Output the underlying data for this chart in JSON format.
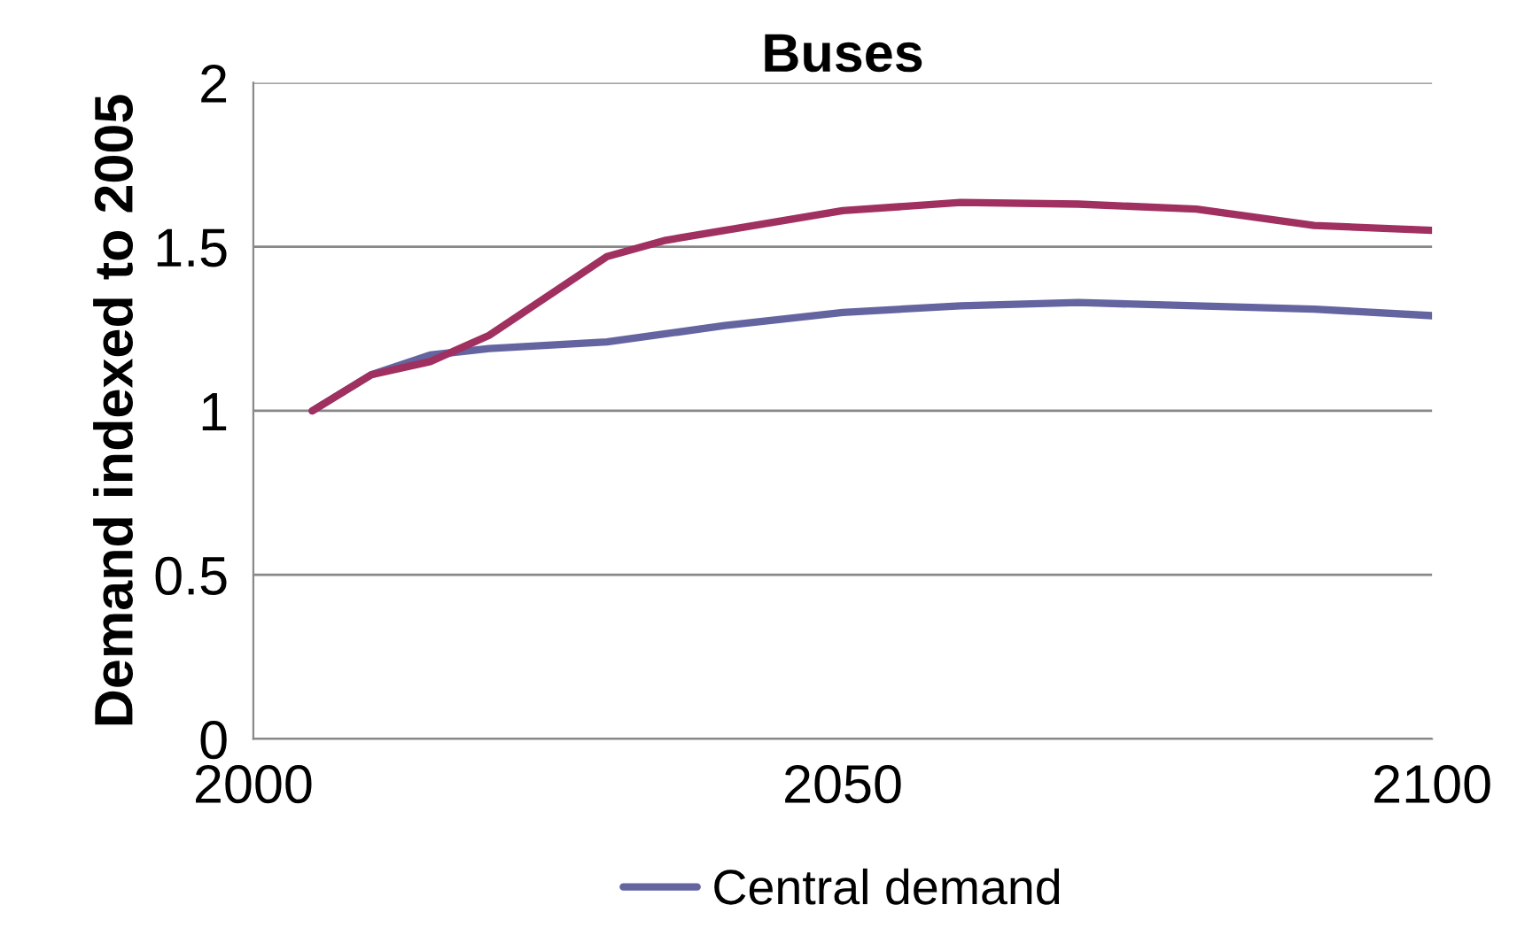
{
  "chart_data": {
    "type": "line",
    "title": "Buses",
    "ylabel": "Demand indexed to 2005",
    "x": [
      2005,
      2010,
      2015,
      2020,
      2025,
      2030,
      2035,
      2040,
      2050,
      2060,
      2070,
      2080,
      2090,
      2100
    ],
    "series": [
      {
        "name": "Central demand",
        "color": "#6464a0",
        "values": [
          1.0,
          1.11,
          1.17,
          1.19,
          1.2,
          1.21,
          1.235,
          1.26,
          1.3,
          1.32,
          1.33,
          1.32,
          1.31,
          1.29
        ]
      },
      {
        "color": "#a03060",
        "values": [
          1.0,
          1.11,
          1.15,
          1.23,
          1.35,
          1.47,
          1.52,
          1.55,
          1.61,
          1.635,
          1.63,
          1.615,
          1.565,
          1.55
        ]
      }
    ],
    "xlim": [
      2000,
      2100
    ],
    "xticks": [
      2000,
      2050,
      2100
    ],
    "ylim": [
      0,
      2
    ],
    "yticks": [
      0,
      0.5,
      1,
      1.5,
      2
    ],
    "grid": "y",
    "legend": "bottom",
    "marker": "none",
    "line_style": "solid"
  }
}
